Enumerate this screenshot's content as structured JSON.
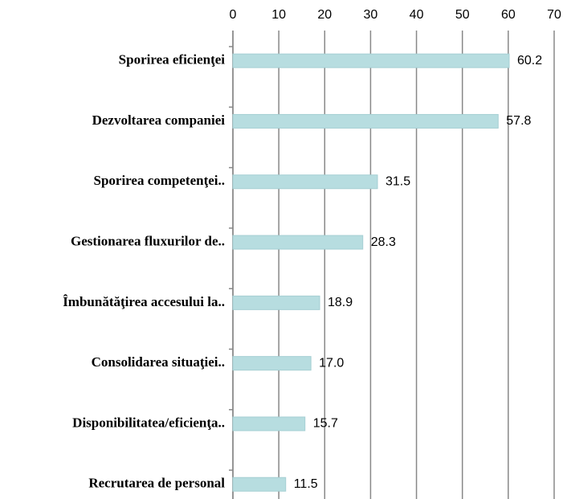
{
  "chart_data": {
    "type": "bar",
    "orientation": "horizontal",
    "categories": [
      "Sporirea eficienţei",
      "Dezvoltarea companiei",
      "Sporirea competenţei..",
      "Gestionarea fluxurilor de..",
      "Îmbunătăţirea accesului la..",
      "Consolidarea situaţiei..",
      "Disponibilitatea/eficienţa..",
      "Recrutarea de personal"
    ],
    "values": [
      60.2,
      57.8,
      31.5,
      28.3,
      18.9,
      17.0,
      15.7,
      11.5
    ],
    "value_labels": [
      "60.2",
      "57.8",
      "31.5",
      "28.3",
      "18.9",
      "17.0",
      "15.7",
      "11.5"
    ],
    "color": "#b7dde0",
    "xlim": [
      0,
      70
    ],
    "xticks": [
      0,
      10,
      20,
      30,
      40,
      50,
      60,
      70
    ],
    "grid": true
  }
}
